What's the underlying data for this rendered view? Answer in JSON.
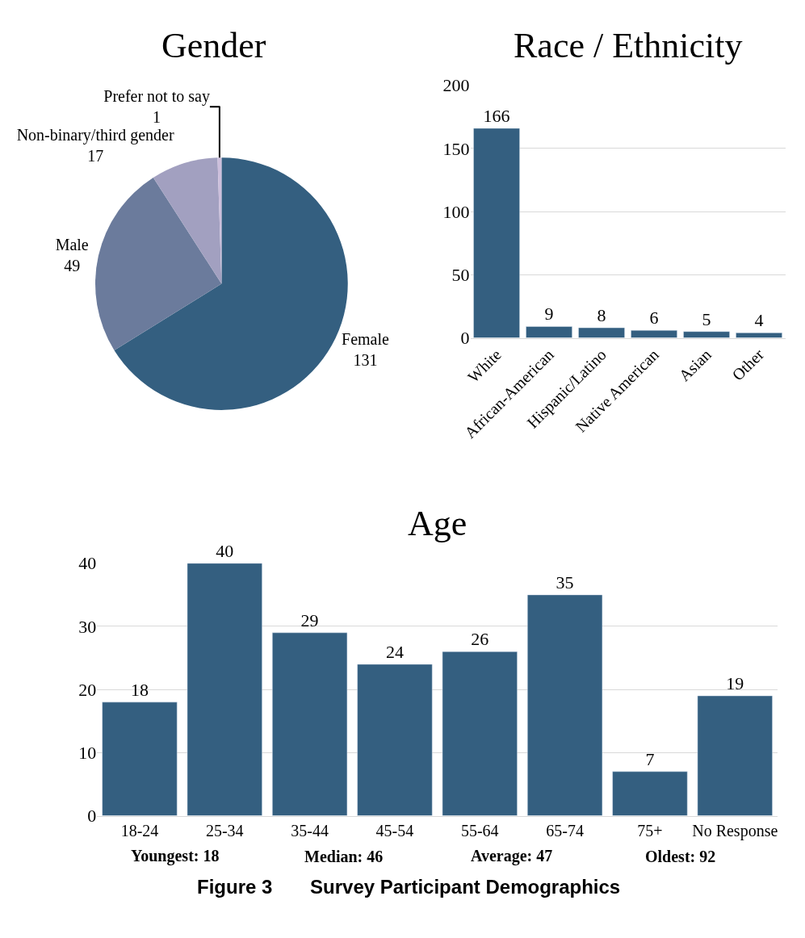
{
  "chart_data": [
    {
      "type": "pie",
      "title": "Gender",
      "categories": [
        "Female",
        "Male",
        "Non-binary/third gender",
        "Prefer not to say"
      ],
      "values": [
        131,
        49,
        17,
        1
      ],
      "colors": [
        "#345f80",
        "#6b7b9c",
        "#a2a0c0",
        "#cdbfdc"
      ],
      "data_labels": true
    },
    {
      "type": "bar",
      "title": "Race / Ethnicity",
      "categories": [
        "White",
        "African-American",
        "Hispanic/Latino",
        "Native American",
        "Asian",
        "Other"
      ],
      "values": [
        166,
        9,
        8,
        6,
        5,
        4
      ],
      "color": "#345f80",
      "ylim": [
        0,
        200
      ],
      "yticks": [
        0,
        50,
        100,
        150,
        200
      ],
      "grid": "y",
      "data_labels": true
    },
    {
      "type": "bar",
      "title": "Age",
      "categories": [
        "18-24",
        "25-34",
        "35-44",
        "45-54",
        "55-64",
        "65-74",
        "75+",
        "No Response"
      ],
      "values": [
        18,
        40,
        29,
        24,
        26,
        35,
        7,
        19
      ],
      "color": "#345f80",
      "ylim": [
        0,
        40
      ],
      "yticks": [
        0,
        10,
        20,
        30,
        40
      ],
      "grid": "y",
      "data_labels": true,
      "annotations": [
        "Youngest: 18",
        "Median: 46",
        "Average: 47",
        "Oldest: 92",
        "Figure 3       Survey Participant Demographics"
      ]
    }
  ]
}
